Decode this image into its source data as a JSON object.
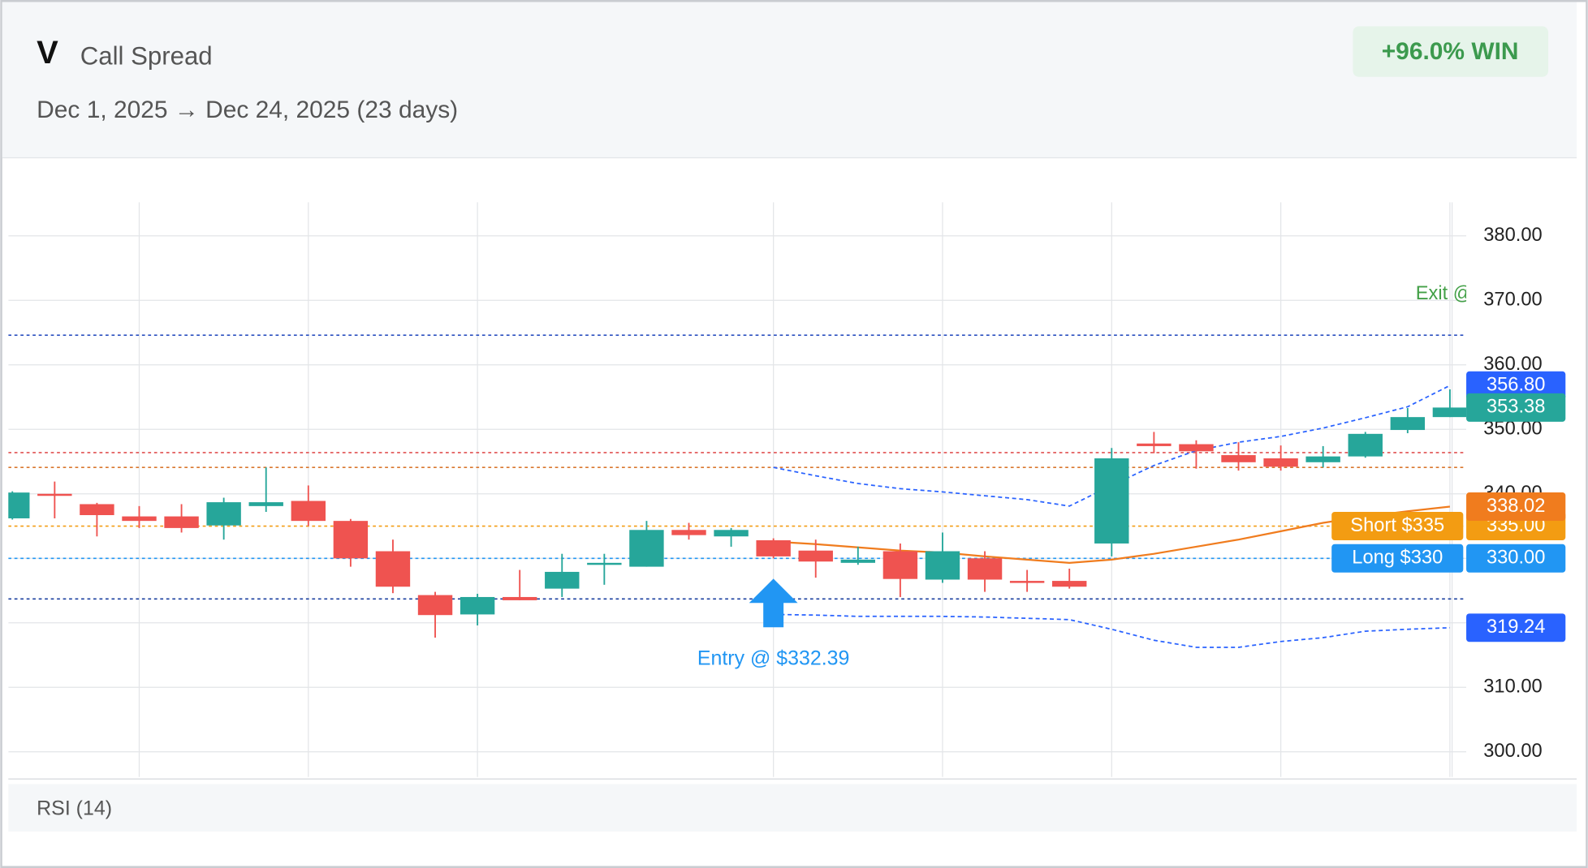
{
  "header": {
    "symbol": "V",
    "strategy": "Call Spread",
    "range": "Dec 1, 2025 → Dec 24, 2025 (23 days)",
    "result": "+96.0% WIN"
  },
  "footer": {
    "indicator": "RSI (14)"
  },
  "chart_data": {
    "type": "candlestick",
    "categories": [
      null,
      null,
      null,
      null,
      null,
      null,
      null,
      null,
      null,
      null,
      null,
      null,
      null,
      null,
      null,
      null,
      null,
      null,
      null,
      null,
      null,
      null,
      null,
      null,
      null,
      null,
      null,
      null,
      null,
      null,
      null,
      null,
      null,
      null,
      null
    ],
    "open": [
      336.2,
      340.0,
      338.4,
      336.5,
      336.5,
      335.1,
      338.1,
      338.9,
      335.8,
      331.1,
      324.3,
      321.3,
      324.0,
      325.3,
      329.0,
      328.7,
      334.4,
      333.4,
      332.8,
      331.2,
      329.3,
      331.1,
      326.7,
      330.0,
      326.5,
      326.5,
      332.3,
      347.8,
      347.7,
      346.0,
      345.5,
      344.9,
      345.8,
      349.9,
      351.9
    ],
    "high": [
      340.4,
      341.9,
      338.6,
      338.1,
      338.4,
      339.4,
      344.1,
      341.3,
      336.1,
      332.9,
      324.8,
      324.5,
      328.2,
      330.7,
      330.7,
      335.8,
      335.5,
      334.7,
      333.1,
      332.9,
      331.8,
      332.3,
      334.0,
      331.1,
      328.2,
      328.4,
      347.1,
      349.6,
      348.3,
      348.0,
      347.5,
      347.4,
      349.6,
      353.3,
      356.2
    ],
    "low": [
      336.0,
      336.2,
      333.4,
      334.7,
      334.0,
      332.9,
      337.2,
      335.0,
      328.7,
      324.6,
      317.7,
      319.6,
      323.5,
      324.0,
      325.9,
      328.7,
      332.9,
      331.8,
      330.0,
      327.0,
      329.0,
      324.0,
      326.2,
      324.8,
      324.8,
      325.3,
      330.3,
      346.3,
      343.9,
      343.6,
      343.6,
      344.1,
      345.6,
      349.4,
      351.9
    ],
    "close": [
      340.2,
      339.8,
      336.7,
      335.8,
      334.7,
      338.7,
      338.7,
      335.8,
      330.0,
      325.6,
      321.2,
      324.0,
      323.5,
      327.9,
      329.3,
      334.4,
      333.6,
      334.4,
      330.3,
      329.5,
      329.8,
      326.8,
      331.1,
      326.7,
      326.2,
      325.6,
      345.5,
      347.4,
      346.6,
      344.9,
      344.2,
      345.8,
      349.3,
      351.9,
      353.38
    ],
    "close_label": "353.38",
    "up_color": "#26a69a",
    "down_color": "#ef5350",
    "ylim": [
      296.1,
      385.2
    ],
    "yticks": [
      {
        "value": 300,
        "label": "300.00"
      },
      {
        "value": 310,
        "label": "310.00"
      },
      {
        "value": 320,
        "label": "320.00"
      },
      {
        "value": 330,
        "label": "330.00"
      },
      {
        "value": 340,
        "label": "340.00"
      },
      {
        "value": 350,
        "label": "350.00"
      },
      {
        "value": 360,
        "label": "360.00"
      },
      {
        "value": 370,
        "label": "370.00"
      },
      {
        "value": 380,
        "label": "380.00"
      }
    ],
    "xticks": [
      3,
      7,
      11,
      18,
      22,
      26,
      30,
      34
    ],
    "grid": true,
    "overlays": [
      {
        "color": "#2962ff",
        "dash": true,
        "end_label": "356.80",
        "values": [
          null,
          null,
          null,
          null,
          null,
          null,
          null,
          null,
          null,
          null,
          null,
          null,
          null,
          null,
          null,
          null,
          null,
          null,
          344.1,
          342.8,
          341.6,
          340.8,
          340.3,
          339.7,
          339.1,
          338.1,
          341.3,
          344.4,
          346.7,
          348.0,
          348.9,
          350.2,
          351.8,
          353.5,
          356.8
        ]
      },
      {
        "color": "#2962ff",
        "dash": true,
        "end_label": "319.24",
        "values": [
          null,
          null,
          null,
          null,
          null,
          null,
          null,
          null,
          null,
          null,
          null,
          null,
          null,
          null,
          null,
          null,
          null,
          null,
          321.3,
          321.2,
          321.0,
          321.0,
          321.0,
          320.9,
          320.7,
          320.5,
          319.0,
          317.3,
          316.2,
          316.2,
          317.1,
          317.7,
          318.7,
          319.0,
          319.24
        ]
      },
      {
        "color": "#f07c1e",
        "dash": false,
        "end_label": "338.02",
        "values": [
          null,
          null,
          null,
          null,
          null,
          null,
          null,
          null,
          null,
          null,
          null,
          null,
          null,
          null,
          null,
          null,
          null,
          null,
          332.6,
          332.2,
          331.7,
          331.2,
          330.9,
          330.3,
          329.8,
          329.3,
          329.8,
          330.7,
          331.8,
          332.9,
          334.2,
          335.5,
          336.5,
          337.3,
          338.02
        ]
      }
    ],
    "levels": [
      {
        "value": 364.6,
        "color": "#2a4fbf"
      },
      {
        "value": 346.4,
        "color": "#e05050"
      },
      {
        "value": 344.1,
        "color": "#d9772e"
      },
      {
        "value": 335,
        "color": "#f39c12",
        "label": "Short $335",
        "value_label": "335.00"
      },
      {
        "value": 330,
        "color": "#2196f3",
        "label": "Long $330",
        "value_label": "330.00"
      },
      {
        "value": 323.7,
        "color": "#1a3f9f"
      }
    ],
    "entry": {
      "text": "Entry @ $332.39",
      "index": 18,
      "color": "#2196f3"
    },
    "exit": {
      "text": "Exit @",
      "color": "#43a047"
    }
  }
}
